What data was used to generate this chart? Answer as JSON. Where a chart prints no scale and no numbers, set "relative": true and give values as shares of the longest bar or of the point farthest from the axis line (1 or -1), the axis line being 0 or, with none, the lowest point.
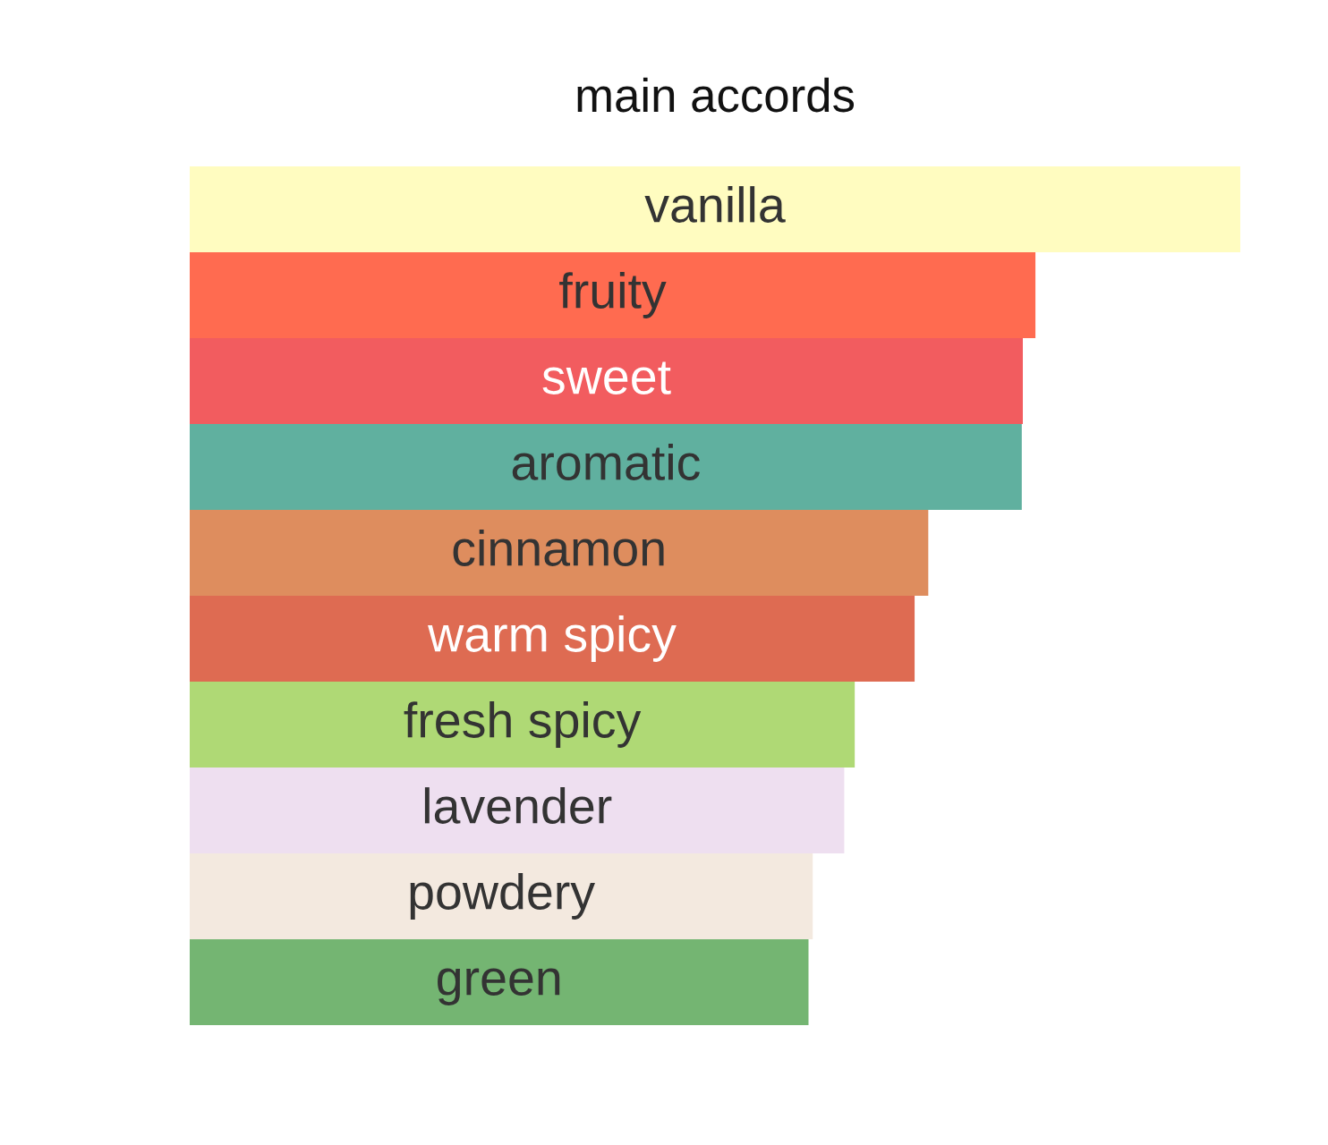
{
  "chart_data": {
    "type": "bar",
    "orientation": "horizontal",
    "relative": true,
    "title": "main accords",
    "categories": [
      "vanilla",
      "fruity",
      "sweet",
      "aromatic",
      "cinnamon",
      "warm spicy",
      "fresh spicy",
      "lavender",
      "powdery",
      "green"
    ],
    "values": [
      1,
      0.805,
      0.793,
      0.792,
      0.703,
      0.69,
      0.633,
      0.623,
      0.593,
      0.589
    ],
    "colors": [
      "#fffcc0",
      "#ff6b50",
      "#f25c5f",
      "#60b09f",
      "#de8d5e",
      "#de6b52",
      "#afd975",
      "#eedff0",
      "#f3e9df",
      "#74b572"
    ]
  }
}
